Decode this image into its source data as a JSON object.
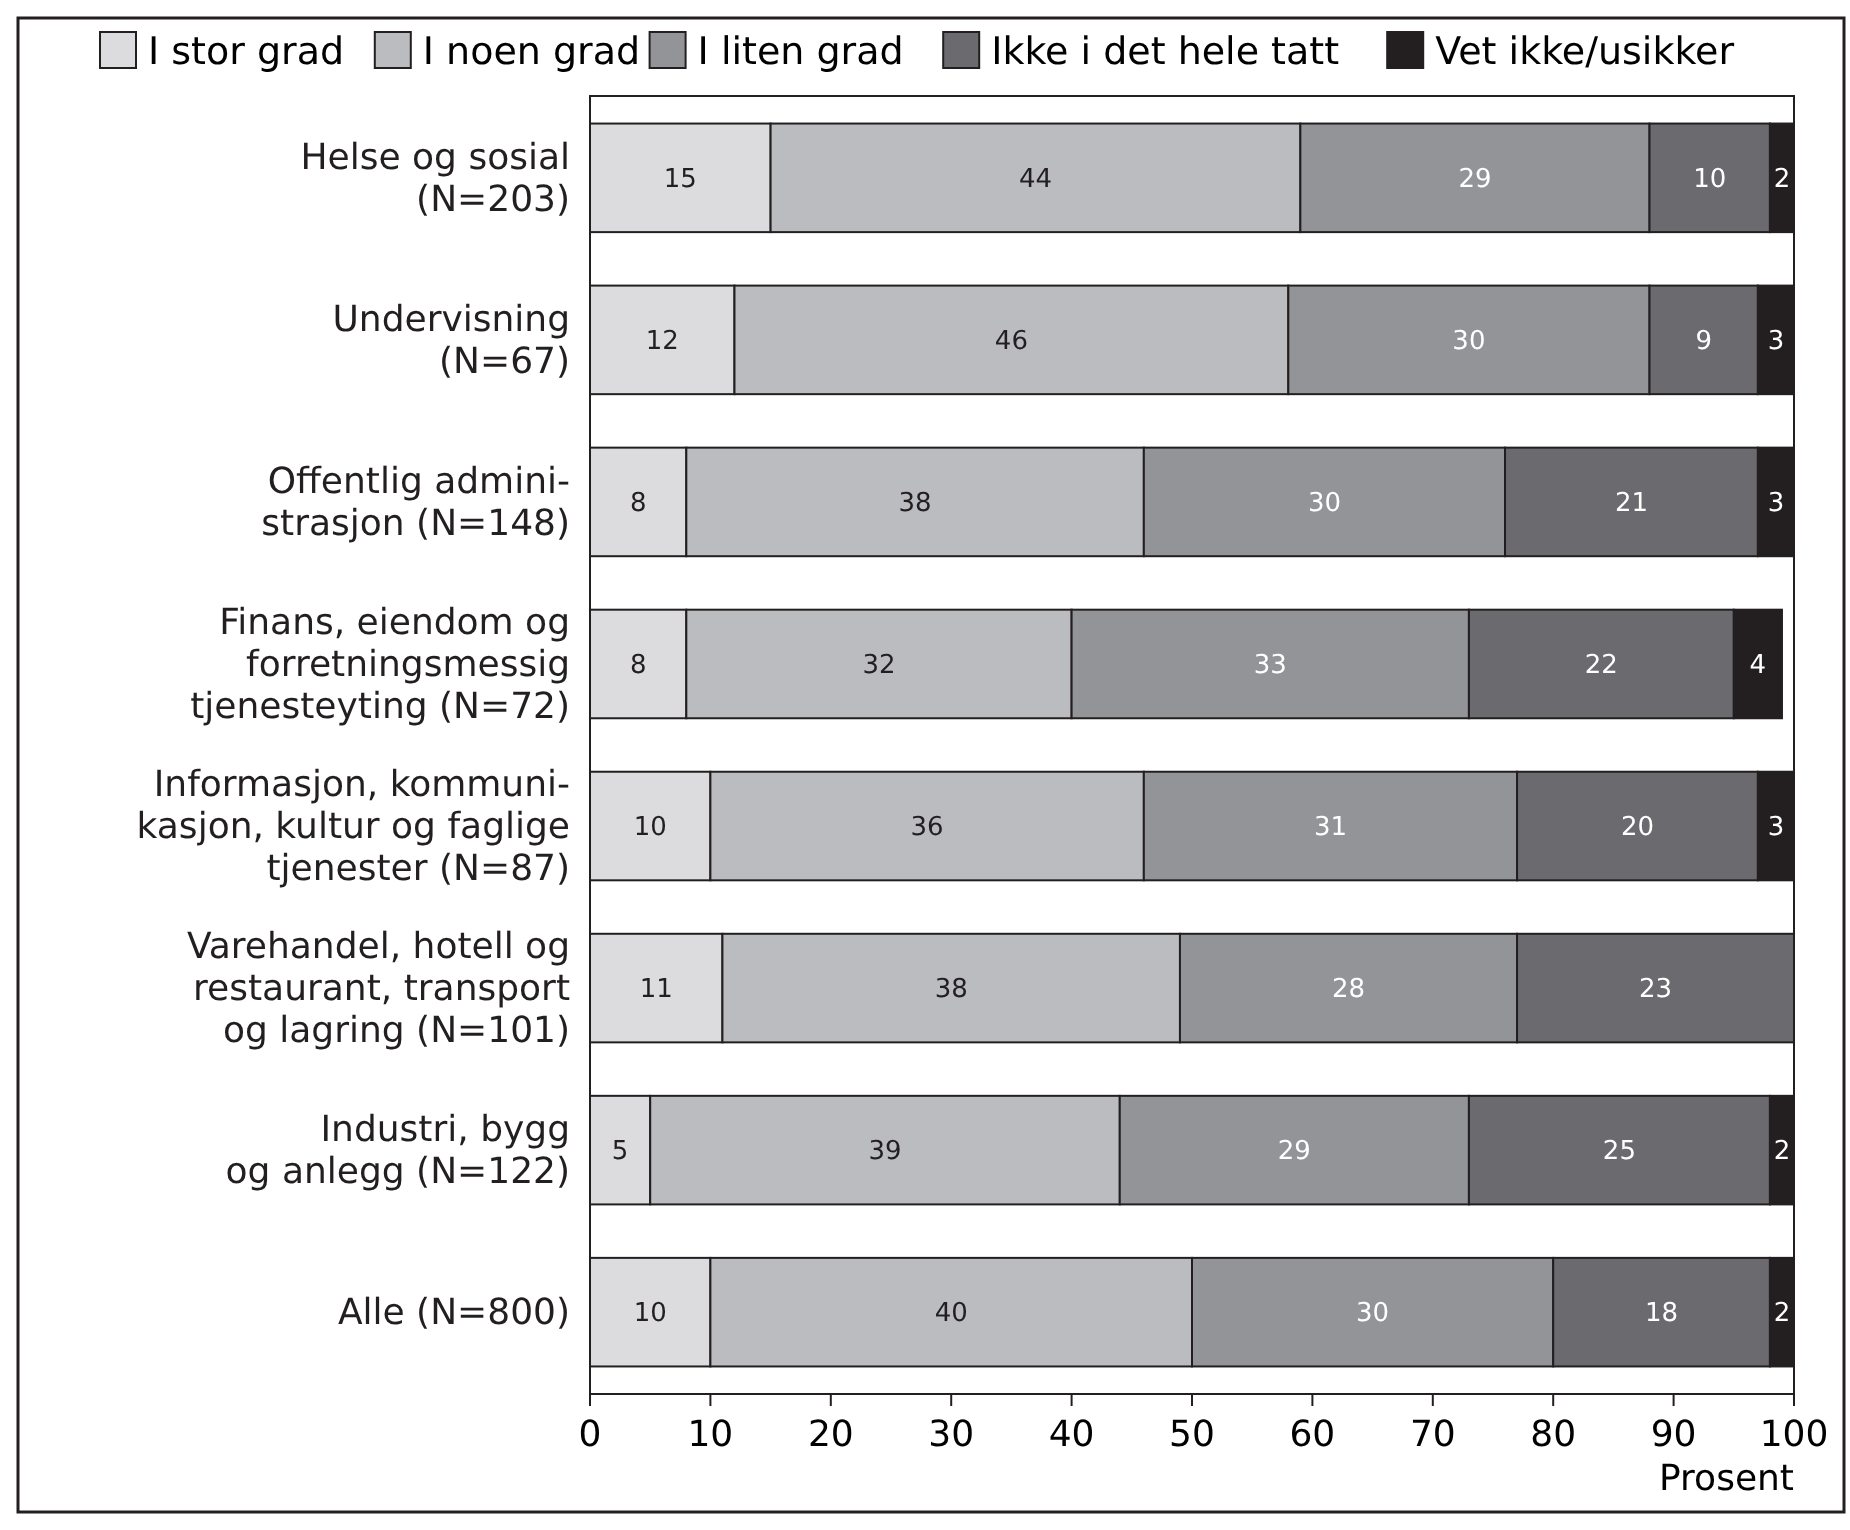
{
  "chart_data": {
    "type": "bar",
    "orientation": "horizontal",
    "stacked": true,
    "data_labels": true,
    "legend": "top",
    "xlabel": "Prosent",
    "xlim": [
      0,
      100
    ],
    "xticks": [
      0,
      10,
      20,
      30,
      40,
      50,
      60,
      70,
      80,
      90,
      100
    ],
    "categories": [
      "Helse og sosial\n(N=203)",
      "Undervisning\n(N=67)",
      "Offentlig admini-\nstrasjon (N=148)",
      "Finans, eiendom og\nforretningsmessig\ntjenesteyting (N=72)",
      "Informasjon, kommuni-\nkasjon, kultur og faglige\ntjenester (N=87)",
      "Varehandel, hotell og\nrestaurant, transport\nog lagring (N=101)",
      "Industri, bygg\nog anlegg (N=122)",
      "Alle (N=800)"
    ],
    "series": [
      {
        "name": "I stor grad",
        "color": "#dcdcde",
        "values": [
          15,
          12,
          8,
          8,
          10,
          11,
          5,
          10
        ]
      },
      {
        "name": "I noen grad",
        "color": "#bbbcc0",
        "values": [
          44,
          46,
          38,
          32,
          36,
          38,
          39,
          40
        ]
      },
      {
        "name": "I liten grad",
        "color": "#939498",
        "values": [
          29,
          30,
          30,
          33,
          31,
          28,
          29,
          30
        ]
      },
      {
        "name": "Ikke i det hele tatt",
        "color": "#6b6b6f",
        "values": [
          10,
          9,
          21,
          22,
          20,
          23,
          25,
          18
        ]
      },
      {
        "name": "Vet ikke/usikker",
        "color": "#231f20",
        "values": [
          2,
          3,
          3,
          4,
          3,
          null,
          2,
          2
        ]
      }
    ]
  }
}
